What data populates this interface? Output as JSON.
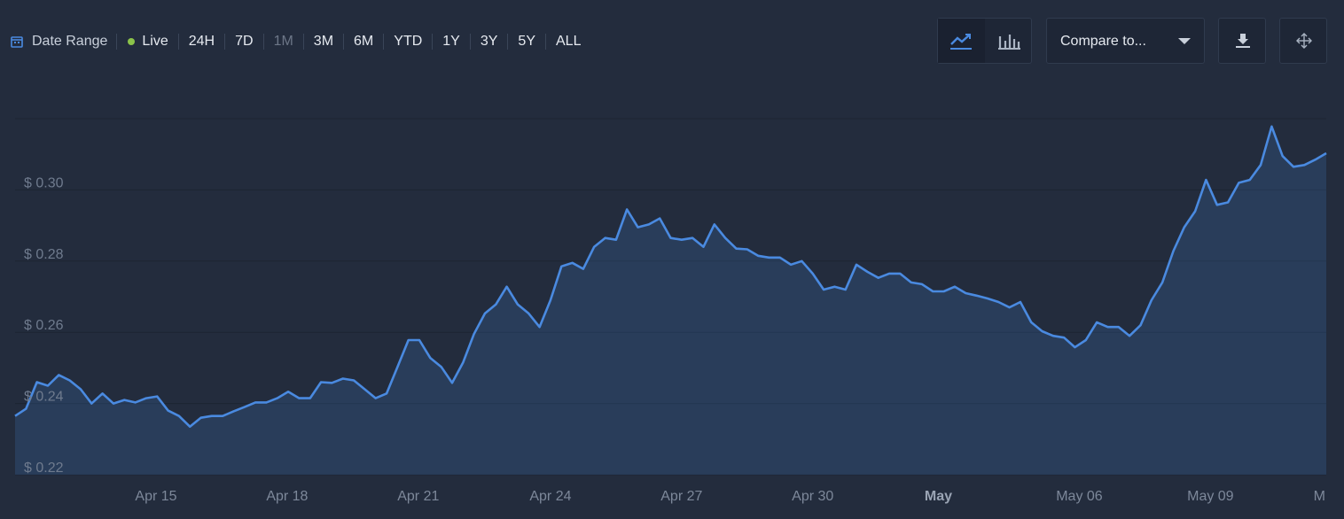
{
  "toolbar": {
    "date_range": "Date Range",
    "live": "Live",
    "ranges": [
      "24H",
      "7D",
      "1M",
      "3M",
      "6M",
      "YTD",
      "1Y",
      "3Y",
      "5Y",
      "ALL"
    ],
    "selected_range": 2,
    "compare": "Compare to..."
  },
  "chart_data": {
    "type": "area",
    "color": "#4a8ae0",
    "values": [
      0.2365,
      0.2385,
      0.246,
      0.245,
      0.248,
      0.2465,
      0.244,
      0.24,
      0.2428,
      0.24,
      0.241,
      0.2403,
      0.2415,
      0.242,
      0.238,
      0.2365,
      0.2335,
      0.236,
      0.2365,
      0.2365,
      0.2378,
      0.239,
      0.2403,
      0.2403,
      0.2415,
      0.2433,
      0.2415,
      0.2415,
      0.246,
      0.2458,
      0.247,
      0.2465,
      0.244,
      0.2415,
      0.2428,
      0.2503,
      0.2578,
      0.2578,
      0.2528,
      0.2503,
      0.2458,
      0.2515,
      0.2595,
      0.2653,
      0.2678,
      0.2728,
      0.2678,
      0.2653,
      0.2615,
      0.269,
      0.2785,
      0.2795,
      0.2778,
      0.284,
      0.2865,
      0.286,
      0.2945,
      0.2895,
      0.2903,
      0.292,
      0.2865,
      0.286,
      0.2865,
      0.284,
      0.2903,
      0.2865,
      0.2835,
      0.2833,
      0.2815,
      0.281,
      0.281,
      0.279,
      0.28,
      0.2765,
      0.272,
      0.2728,
      0.272,
      0.279,
      0.277,
      0.2753,
      0.2765,
      0.2765,
      0.274,
      0.2735,
      0.2715,
      0.2715,
      0.2728,
      0.271,
      0.2703,
      0.2695,
      0.2685,
      0.267,
      0.2685,
      0.2628,
      0.2603,
      0.259,
      0.2585,
      0.2558,
      0.2578,
      0.2628,
      0.2615,
      0.2615,
      0.259,
      0.262,
      0.269,
      0.274,
      0.2828,
      0.2895,
      0.294,
      0.3028,
      0.2958,
      0.2965,
      0.302,
      0.3028,
      0.307,
      0.3178,
      0.3095,
      0.3065,
      0.307,
      0.3085,
      0.3103
    ],
    "xlim": [
      0,
      120
    ],
    "xticks": [
      {
        "value": 12.9,
        "label": "Apr 15"
      },
      {
        "value": 24.9,
        "label": "Apr 18"
      },
      {
        "value": 36.9,
        "label": "Apr 21"
      },
      {
        "value": 49.0,
        "label": "Apr 24"
      },
      {
        "value": 61.0,
        "label": "Apr 27"
      },
      {
        "value": 73.0,
        "label": "Apr 30"
      },
      {
        "value": 84.5,
        "label": "May"
      },
      {
        "value": 97.4,
        "label": "May 06"
      },
      {
        "value": 109.4,
        "label": "May 09"
      },
      {
        "value": 120,
        "label": "M"
      }
    ],
    "ylim": [
      0.22,
      0.32
    ],
    "yticks": [
      {
        "value": 0.22,
        "label": "$ 0.22"
      },
      {
        "value": 0.24,
        "label": "$ 0.24"
      },
      {
        "value": 0.26,
        "label": "$ 0.26"
      },
      {
        "value": 0.28,
        "label": "$ 0.28"
      },
      {
        "value": 0.3,
        "label": "$ 0.30"
      }
    ],
    "grid": true
  }
}
